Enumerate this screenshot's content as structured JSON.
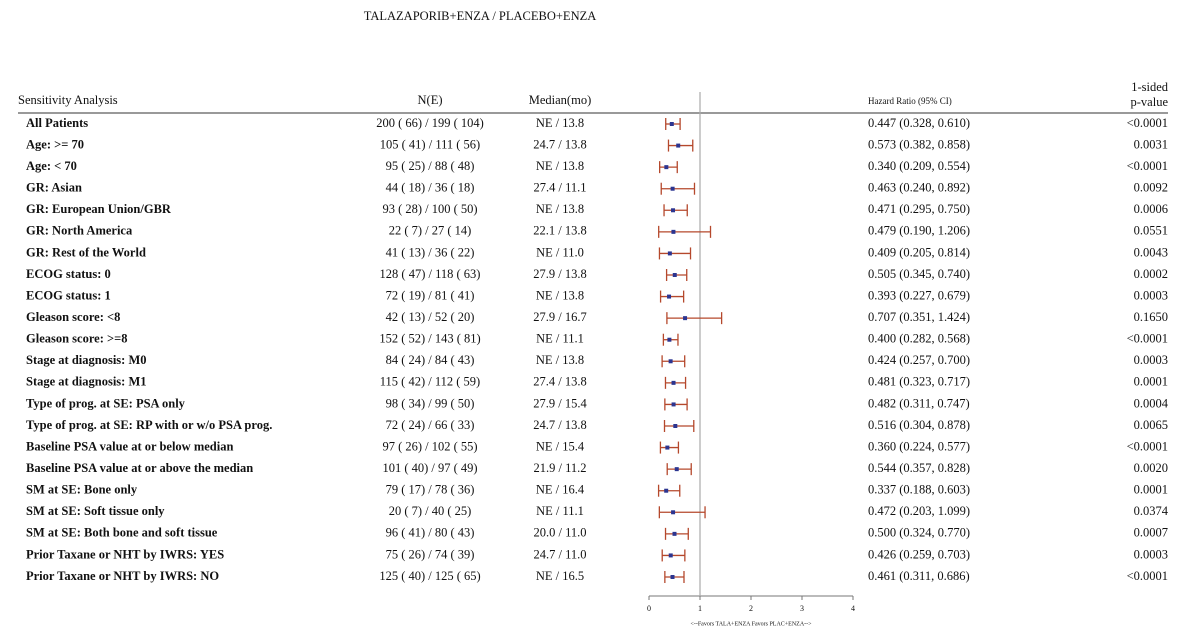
{
  "chart_data": {
    "type": "forest",
    "title": "TALAZAPORIB+ENZA / PLACEBO+ENZA",
    "label_header": "Sensitivity Analysis",
    "n_header": "N(E)",
    "median_header": "Median(mo)",
    "hr_header": "Hazard Ratio (95% CI)",
    "p_header": [
      "1-sided",
      "p-value"
    ],
    "x_label": "<--Favors TALA+ENZA  Favors PLAC+ENZA-->",
    "categories": [
      "All Patients",
      "Age: >= 70",
      "Age: < 70",
      "GR: Asian",
      "GR: European Union/GBR",
      "GR: North America",
      "GR: Rest of the World",
      "ECOG status: 0",
      "ECOG status: 1",
      "Gleason score: <8",
      "Gleason score: >=8",
      "Stage at diagnosis: M0",
      "Stage at diagnosis: M1",
      "Type of prog. at SE: PSA only",
      "Type of prog. at SE: RP with or w/o PSA prog.",
      "Baseline PSA value at or below median",
      "Baseline PSA value at or above the median",
      "SM at SE: Bone only",
      "SM at SE: Soft tissue only",
      "SM at SE: Both bone and soft tissue",
      "Prior Taxane or NHT by IWRS: YES",
      "Prior Taxane or NHT by IWRS: NO"
    ],
    "n": [
      "200 ( 66) / 199 ( 104)",
      "105 ( 41) / 111 ( 56)",
      "95 ( 25) / 88 ( 48)",
      "44 ( 18) / 36 ( 18)",
      "93 ( 28) / 100 ( 50)",
      "22 ( 7) / 27 ( 14)",
      "41 ( 13) / 36 ( 22)",
      "128 ( 47) / 118 ( 63)",
      "72 ( 19) / 81 ( 41)",
      "42 ( 13) / 52 ( 20)",
      "152 ( 52) / 143 ( 81)",
      "84 ( 24) / 84 ( 43)",
      "115 ( 42) / 112 ( 59)",
      "98 ( 34) / 99 ( 50)",
      "72 ( 24) / 66 ( 33)",
      "97 ( 26) / 102 ( 55)",
      "101 ( 40) / 97 ( 49)",
      "79 ( 17) / 78 ( 36)",
      "20 ( 7) / 40 ( 25)",
      "96 ( 41) / 80 ( 43)",
      "75 ( 26) / 74 ( 39)",
      "125 ( 40) / 125 ( 65)"
    ],
    "median": [
      "NE / 13.8",
      "24.7 / 13.8",
      "NE / 13.8",
      "27.4 / 11.1",
      "NE / 13.8",
      "22.1 / 13.8",
      "NE / 11.0",
      "27.9 / 13.8",
      "NE / 13.8",
      "27.9 / 16.7",
      "NE / 11.1",
      "NE / 13.8",
      "27.4 / 13.8",
      "27.9 / 15.4",
      "24.7 / 13.8",
      "NE / 15.4",
      "21.9 / 11.2",
      "NE / 16.4",
      "NE / 11.1",
      "20.0 / 11.0",
      "24.7 / 11.0",
      "NE / 16.5"
    ],
    "values": [
      0.447,
      0.573,
      0.34,
      0.463,
      0.471,
      0.479,
      0.409,
      0.505,
      0.393,
      0.707,
      0.4,
      0.424,
      0.481,
      0.482,
      0.516,
      0.36,
      0.544,
      0.337,
      0.472,
      0.5,
      0.426,
      0.461
    ],
    "lower": [
      0.328,
      0.382,
      0.209,
      0.24,
      0.295,
      0.19,
      0.205,
      0.345,
      0.227,
      0.351,
      0.282,
      0.257,
      0.323,
      0.311,
      0.304,
      0.224,
      0.357,
      0.188,
      0.203,
      0.324,
      0.259,
      0.311
    ],
    "upper": [
      0.61,
      0.858,
      0.554,
      0.892,
      0.75,
      1.206,
      0.814,
      0.74,
      0.679,
      1.424,
      0.568,
      0.7,
      0.717,
      0.747,
      0.878,
      0.577,
      0.828,
      0.603,
      1.099,
      0.77,
      0.703,
      0.686
    ],
    "value_labels": [
      "0.447 (0.328, 0.610)",
      "0.573 (0.382, 0.858)",
      "0.340 (0.209, 0.554)",
      "0.463 (0.240, 0.892)",
      "0.471 (0.295, 0.750)",
      "0.479 (0.190, 1.206)",
      "0.409 (0.205, 0.814)",
      "0.505 (0.345, 0.740)",
      "0.393 (0.227, 0.679)",
      "0.707 (0.351, 1.424)",
      "0.400 (0.282, 0.568)",
      "0.424 (0.257, 0.700)",
      "0.481 (0.323, 0.717)",
      "0.482 (0.311, 0.747)",
      "0.516 (0.304, 0.878)",
      "0.360 (0.224, 0.577)",
      "0.544 (0.357, 0.828)",
      "0.337 (0.188, 0.603)",
      "0.472 (0.203, 1.099)",
      "0.500 (0.324, 0.770)",
      "0.426 (0.259, 0.703)",
      "0.461 (0.311, 0.686)"
    ],
    "p_values": [
      "<0.0001",
      "0.0031",
      "<0.0001",
      "0.0092",
      "0.0006",
      "0.0551",
      "0.0043",
      "0.0002",
      "0.0003",
      "0.1650",
      "<0.0001",
      "0.0003",
      "0.0001",
      "0.0004",
      "0.0065",
      "<0.0001",
      "0.0020",
      "0.0001",
      "0.0374",
      "0.0007",
      "0.0003",
      "<0.0001"
    ],
    "xlim": [
      0,
      4
    ],
    "xticks": [
      0,
      1,
      2,
      3,
      4
    ],
    "reference": 1,
    "point_color": "#2c3590",
    "ci_color": "#b5482c"
  }
}
